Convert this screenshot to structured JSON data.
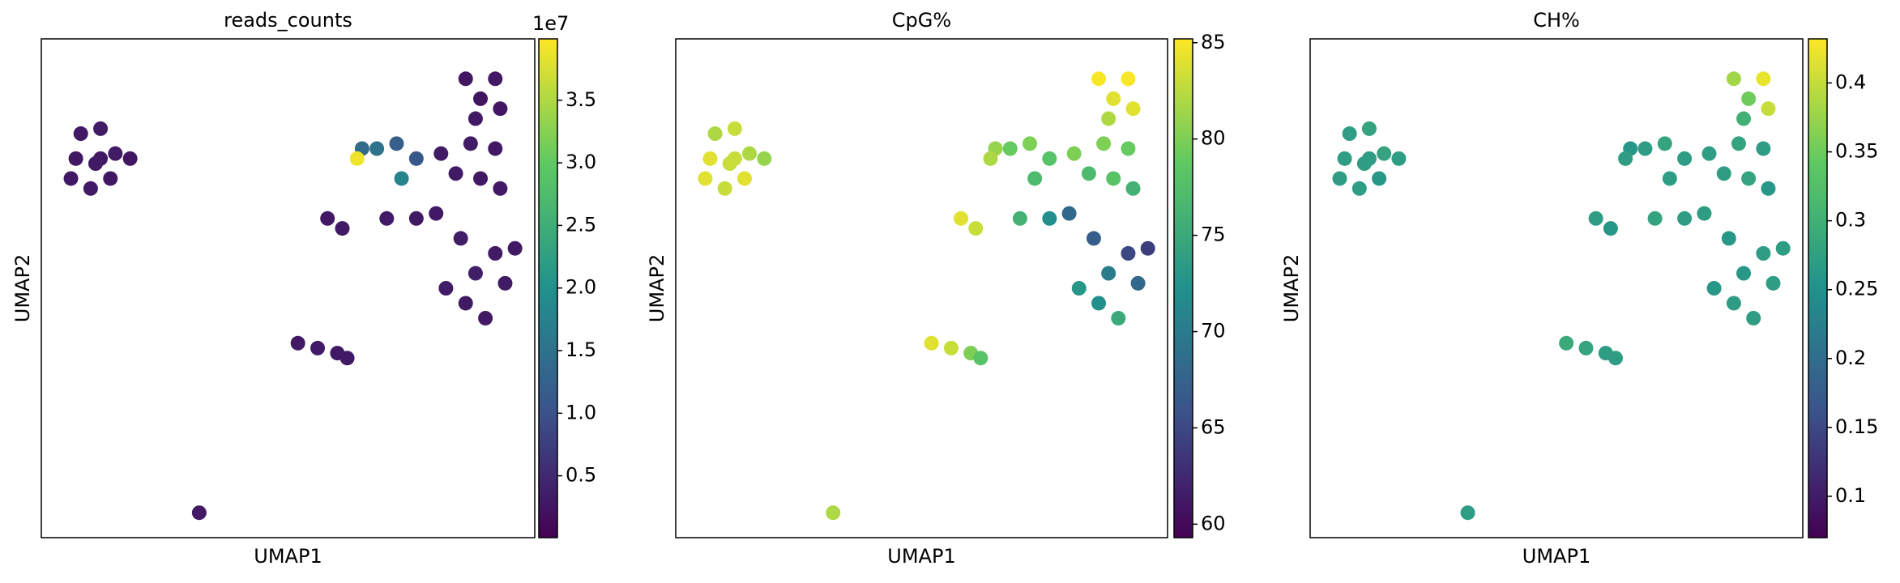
{
  "chart_data": [
    {
      "type": "scatter",
      "title": "reads_counts",
      "xlabel": "UMAP1",
      "ylabel": "UMAP2",
      "colormap": "viridis",
      "xlim": [
        0,
        10
      ],
      "ylim": [
        0,
        10
      ],
      "x": [
        1.1,
        0.7,
        1.5,
        1.0,
        1.4,
        0.8,
        1.2,
        1.8,
        0.6,
        1.2,
        8.6,
        9.2,
        8.9,
        9.3,
        8.8,
        8.7,
        9.2,
        8.4,
        8.9,
        9.3,
        8.1,
        6.8,
        7.2,
        7.6,
        7.3,
        6.5,
        6.4,
        5.8,
        6.1,
        7.0,
        7.6,
        8.0,
        8.5,
        9.2,
        9.6,
        8.8,
        9.4,
        8.2,
        8.6,
        9.0,
        5.2,
        5.6,
        6.0,
        6.2,
        3.2
      ],
      "y": [
        7.5,
        7.6,
        7.7,
        7.0,
        7.2,
        8.1,
        8.2,
        7.6,
        7.2,
        7.6,
        9.2,
        9.2,
        8.8,
        8.6,
        8.4,
        7.9,
        7.8,
        7.3,
        7.2,
        7.0,
        7.7,
        7.8,
        7.9,
        7.6,
        7.2,
        7.8,
        7.6,
        6.4,
        6.2,
        6.4,
        6.4,
        6.5,
        6.0,
        5.7,
        5.8,
        5.3,
        5.1,
        5.0,
        4.7,
        4.4,
        3.9,
        3.8,
        3.7,
        3.6,
        0.5
      ],
      "values": [
        3000000,
        2800000,
        3200000,
        3100000,
        2900000,
        3000000,
        3300000,
        2700000,
        3000000,
        3100000,
        2600000,
        2800000,
        2500000,
        2700000,
        3000000,
        3200000,
        2900000,
        3100000,
        3000000,
        2800000,
        3300000,
        15000000,
        12000000,
        11000000,
        18000000,
        14000000,
        39000000,
        2800000,
        3000000,
        3200000,
        2900000,
        3100000,
        3500000,
        3300000,
        3000000,
        3600000,
        3200000,
        3400000,
        3100000,
        3000000,
        3000000,
        3200000,
        2900000,
        3100000,
        3000000
      ],
      "clim": [
        60000,
        39900000
      ],
      "colorbar_offset_label": "1e7",
      "cticks": [
        {
          "value": 5000000,
          "label": "0.5"
        },
        {
          "value": 10000000,
          "label": "1.0"
        },
        {
          "value": 15000000,
          "label": "1.5"
        },
        {
          "value": 20000000,
          "label": "2.0"
        },
        {
          "value": 25000000,
          "label": "2.5"
        },
        {
          "value": 30000000,
          "label": "3.0"
        },
        {
          "value": 35000000,
          "label": "3.5"
        }
      ]
    },
    {
      "type": "scatter",
      "title": "CpG%",
      "xlabel": "UMAP1",
      "ylabel": "UMAP2",
      "colormap": "viridis",
      "xlim": [
        0,
        10
      ],
      "ylim": [
        0,
        10
      ],
      "x": [
        1.1,
        0.7,
        1.5,
        1.0,
        1.4,
        0.8,
        1.2,
        1.8,
        0.6,
        1.2,
        8.6,
        9.2,
        8.9,
        9.3,
        8.8,
        8.7,
        9.2,
        8.4,
        8.9,
        9.3,
        8.1,
        6.8,
        7.2,
        7.6,
        7.3,
        6.5,
        6.4,
        5.8,
        6.1,
        7.0,
        7.6,
        8.0,
        8.5,
        9.2,
        9.6,
        8.8,
        9.4,
        8.2,
        8.6,
        9.0,
        5.2,
        5.6,
        6.0,
        6.2,
        3.2
      ],
      "y": [
        7.5,
        7.6,
        7.7,
        7.0,
        7.2,
        8.1,
        8.2,
        7.6,
        7.2,
        7.6,
        9.2,
        9.2,
        8.8,
        8.6,
        8.4,
        7.9,
        7.8,
        7.3,
        7.2,
        7.0,
        7.7,
        7.8,
        7.9,
        7.6,
        7.2,
        7.8,
        7.6,
        6.4,
        6.2,
        6.4,
        6.4,
        6.5,
        6.0,
        5.7,
        5.8,
        5.3,
        5.1,
        5.0,
        4.7,
        4.4,
        3.9,
        3.8,
        3.7,
        3.6,
        0.5
      ],
      "values": [
        83,
        84,
        82,
        83,
        84,
        82,
        83,
        81,
        84,
        83,
        85,
        85,
        84,
        84,
        82,
        80,
        79,
        77,
        78,
        76,
        80,
        79,
        80,
        78,
        77,
        81,
        82,
        84,
        83,
        76,
        72,
        68,
        67,
        65,
        64,
        70,
        68,
        73,
        72,
        75,
        84,
        83,
        80,
        78,
        82
      ],
      "clim": [
        59.3,
        85.2
      ],
      "cticks": [
        60,
        65,
        70,
        75,
        80,
        85
      ]
    },
    {
      "type": "scatter",
      "title": "CH%",
      "xlabel": "UMAP1",
      "ylabel": "UMAP2",
      "colormap": "viridis",
      "xlim": [
        0,
        10
      ],
      "ylim": [
        0,
        10
      ],
      "x": [
        1.1,
        0.7,
        1.5,
        1.0,
        1.4,
        0.8,
        1.2,
        1.8,
        0.6,
        1.2,
        8.6,
        9.2,
        8.9,
        9.3,
        8.8,
        8.7,
        9.2,
        8.4,
        8.9,
        9.3,
        8.1,
        6.8,
        7.2,
        7.6,
        7.3,
        6.5,
        6.4,
        5.8,
        6.1,
        7.0,
        7.6,
        8.0,
        8.5,
        9.2,
        9.6,
        8.8,
        9.4,
        8.2,
        8.6,
        9.0,
        5.2,
        5.6,
        6.0,
        6.2,
        3.2
      ],
      "y": [
        7.5,
        7.6,
        7.7,
        7.0,
        7.2,
        8.1,
        8.2,
        7.6,
        7.2,
        7.6,
        9.2,
        9.2,
        8.8,
        8.6,
        8.4,
        7.9,
        7.8,
        7.3,
        7.2,
        7.0,
        7.7,
        7.8,
        7.9,
        7.6,
        7.2,
        7.8,
        7.6,
        6.4,
        6.2,
        6.4,
        6.4,
        6.5,
        6.0,
        5.7,
        5.8,
        5.3,
        5.1,
        5.0,
        4.7,
        4.4,
        3.9,
        3.8,
        3.7,
        3.6,
        0.5
      ],
      "values": [
        0.27,
        0.27,
        0.28,
        0.27,
        0.26,
        0.27,
        0.28,
        0.27,
        0.27,
        0.27,
        0.38,
        0.42,
        0.35,
        0.4,
        0.3,
        0.28,
        0.27,
        0.27,
        0.28,
        0.26,
        0.27,
        0.27,
        0.28,
        0.27,
        0.27,
        0.26,
        0.27,
        0.27,
        0.26,
        0.28,
        0.27,
        0.27,
        0.26,
        0.27,
        0.27,
        0.26,
        0.27,
        0.26,
        0.27,
        0.27,
        0.29,
        0.28,
        0.27,
        0.27,
        0.27
      ],
      "clim": [
        0.07,
        0.432
      ],
      "cticks": [
        0.1,
        0.15,
        0.2,
        0.25,
        0.3,
        0.35,
        0.4
      ]
    }
  ]
}
